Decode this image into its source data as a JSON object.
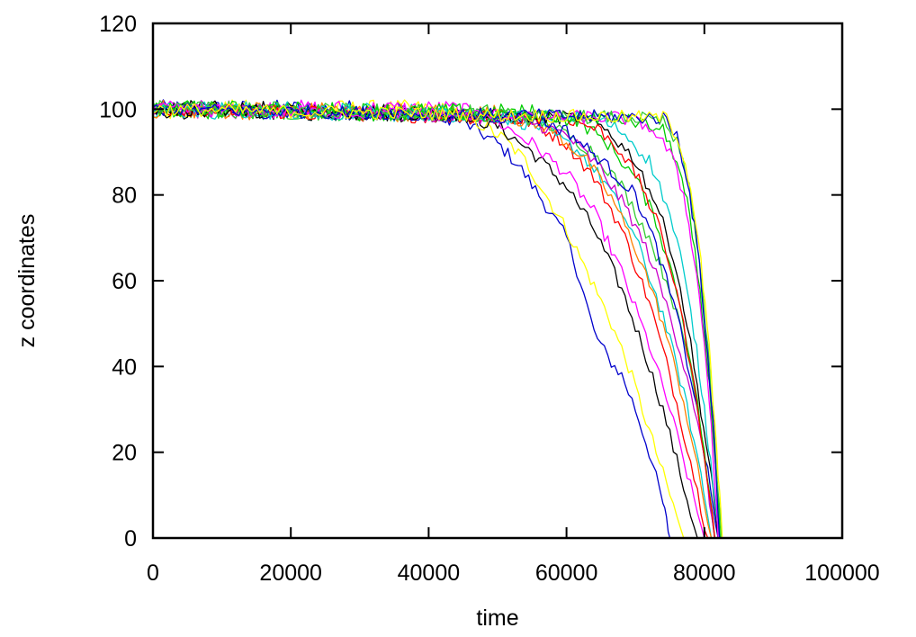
{
  "chart_data": {
    "type": "line",
    "title": "",
    "xlabel": "time",
    "ylabel": "z coordinates",
    "xlim": [
      0,
      100000
    ],
    "ylim": [
      0,
      120
    ],
    "xticks": [
      0,
      20000,
      40000,
      60000,
      80000,
      100000
    ],
    "yticks": [
      0,
      20,
      40,
      60,
      80,
      100,
      120
    ],
    "xtick_labels": [
      "0",
      "20000",
      "40000",
      "60000",
      "80000",
      "100000"
    ],
    "ytick_labels": [
      "0",
      "20",
      "40",
      "60",
      "80",
      "100",
      "120"
    ],
    "grid": false,
    "legend": "none",
    "series_colors": [
      "#ff0000",
      "#00cc00",
      "#0000cc",
      "#ff00ff",
      "#00cccc",
      "#ffff00",
      "#000000",
      "#ff8000",
      "#33cc33",
      "#cc00cc"
    ],
    "series": [
      {
        "color": "#0000cc",
        "x": [
          0,
          38000,
          45000,
          50000,
          53000,
          56000,
          60000,
          62000,
          64000,
          66000,
          68000,
          70000,
          72000,
          74000,
          75000
        ],
        "y": [
          100,
          100,
          97,
          92,
          87,
          80,
          70,
          60,
          48,
          42,
          38,
          30,
          20,
          8,
          0
        ]
      },
      {
        "color": "#ffff00",
        "x": [
          0,
          42000,
          47000,
          51000,
          54000,
          57000,
          60000,
          63000,
          66000,
          69000,
          72000,
          75000,
          77000
        ],
        "y": [
          100,
          100,
          97,
          93,
          88,
          80,
          72,
          62,
          52,
          40,
          25,
          10,
          0
        ]
      },
      {
        "color": "#000000",
        "x": [
          0,
          44000,
          50000,
          55000,
          60000,
          64000,
          68000,
          71000,
          74000,
          77000,
          79000
        ],
        "y": [
          100,
          99,
          96,
          90,
          82,
          72,
          58,
          45,
          30,
          12,
          0
        ]
      },
      {
        "color": "#ff00ff",
        "x": [
          0,
          45000,
          50000,
          55000,
          60000,
          64000,
          68000,
          72000,
          75000,
          78000,
          80000
        ],
        "y": [
          100,
          100,
          97,
          92,
          85,
          76,
          62,
          45,
          30,
          12,
          0
        ]
      },
      {
        "color": "#ff0000",
        "x": [
          0,
          47000,
          55000,
          60000,
          64000,
          68000,
          72000,
          75000,
          78000,
          80500
        ],
        "y": [
          100,
          98,
          97,
          92,
          84,
          72,
          55,
          38,
          18,
          0
        ]
      },
      {
        "color": "#00cccc",
        "x": [
          0,
          48000,
          56000,
          62000,
          66000,
          70000,
          74000,
          77000,
          79500,
          81000
        ],
        "y": [
          100,
          99,
          96,
          90,
          82,
          70,
          52,
          34,
          15,
          0
        ]
      },
      {
        "color": "#ff8000",
        "x": [
          0,
          50000,
          58000,
          63000,
          67000,
          71000,
          74000,
          77000,
          79000,
          81000
        ],
        "y": [
          100,
          99,
          95,
          88,
          78,
          64,
          50,
          32,
          16,
          0
        ]
      },
      {
        "color": "#33cc33",
        "x": [
          0,
          52000,
          58000,
          64000,
          68000,
          72000,
          75000,
          78000,
          80000,
          81500
        ],
        "y": [
          100,
          99,
          96,
          90,
          82,
          70,
          58,
          40,
          20,
          0
        ]
      },
      {
        "color": "#cc00cc",
        "x": [
          0,
          53000,
          60000,
          65000,
          69000,
          72000,
          75000,
          78000,
          80000,
          81500
        ],
        "y": [
          100,
          98,
          94,
          86,
          76,
          66,
          52,
          35,
          18,
          0
        ]
      },
      {
        "color": "#0000cc",
        "x": [
          0,
          55000,
          60000,
          65000,
          70000,
          73000,
          76000,
          78500,
          80500,
          82000
        ],
        "y": [
          100,
          98,
          95,
          88,
          80,
          68,
          52,
          34,
          15,
          0
        ]
      },
      {
        "color": "#00cc00",
        "x": [
          0,
          56000,
          62000,
          66000,
          70000,
          73000,
          76000,
          78000,
          80000,
          81500
        ],
        "y": [
          100,
          99,
          97,
          92,
          84,
          74,
          58,
          42,
          20,
          0
        ]
      },
      {
        "color": "#ff0000",
        "x": [
          0,
          60000,
          65000,
          68000,
          71000,
          73500,
          76000,
          78000,
          80000,
          81500
        ],
        "y": [
          100,
          98,
          95,
          90,
          82,
          72,
          58,
          40,
          20,
          0
        ]
      },
      {
        "color": "#000000",
        "x": [
          0,
          62000,
          66000,
          70000,
          73000,
          75500,
          77500,
          79500,
          81000,
          82000
        ],
        "y": [
          100,
          98,
          95,
          88,
          78,
          66,
          50,
          30,
          14,
          0
        ]
      },
      {
        "color": "#00cccc",
        "x": [
          0,
          64000,
          68000,
          72000,
          74500,
          76500,
          78500,
          80000,
          81200,
          82200
        ],
        "y": [
          100,
          98,
          95,
          88,
          78,
          66,
          48,
          30,
          14,
          0
        ]
      },
      {
        "color": "#00cc00",
        "x": [
          0,
          66000,
          70000,
          74000,
          76000,
          77500,
          79000,
          80500,
          81500,
          82300
        ],
        "y": [
          100,
          98,
          97,
          95,
          88,
          78,
          62,
          40,
          20,
          0
        ]
      },
      {
        "color": "#ff00ff",
        "x": [
          0,
          68000,
          72000,
          75000,
          77000,
          78500,
          80000,
          81000,
          82000
        ],
        "y": [
          100,
          98,
          96,
          90,
          80,
          66,
          46,
          26,
          0
        ]
      },
      {
        "color": "#33cc33",
        "x": [
          0,
          70000,
          74000,
          76000,
          77800,
          79200,
          80500,
          81500,
          82500
        ],
        "y": [
          100,
          98,
          97,
          92,
          82,
          66,
          44,
          22,
          0
        ]
      },
      {
        "color": "#0000cc",
        "x": [
          0,
          74000,
          76000,
          77500,
          79000,
          80200,
          81300,
          82200
        ],
        "y": [
          100,
          98,
          94,
          84,
          68,
          48,
          26,
          0
        ]
      },
      {
        "color": "#ffff00",
        "x": [
          0,
          74500,
          76500,
          78000,
          79500,
          80700,
          81800,
          82600
        ],
        "y": [
          100,
          98,
          92,
          82,
          64,
          44,
          20,
          0
        ]
      }
    ]
  }
}
